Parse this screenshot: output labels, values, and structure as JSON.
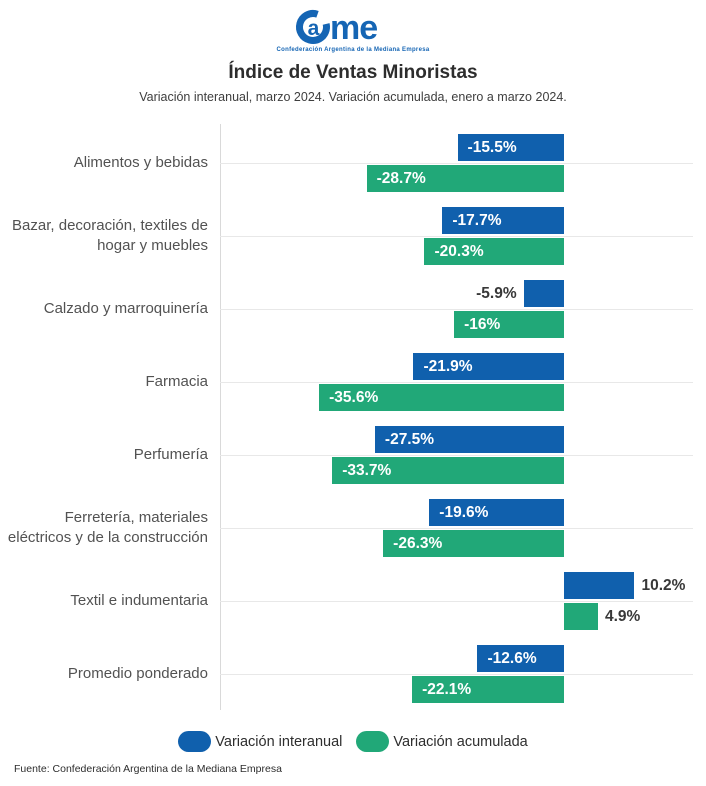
{
  "header": {
    "logo": {
      "letter_a": "a",
      "letters_me": "me",
      "tagline": "Confederación Argentina de la Mediana Empresa"
    },
    "title": "Índice de Ventas Minoristas",
    "subtitle": "Variación interanual, marzo 2024. Variación acumulada, enero a marzo 2024."
  },
  "chart_data": {
    "type": "bar",
    "orientation": "horizontal",
    "title": "Índice de Ventas Minoristas",
    "subtitle": "Variación interanual, marzo 2024. Variación acumulada, enero a marzo 2024.",
    "categories": [
      "Alimentos y bebidas",
      "Bazar, decoración, textiles de\nhogar y muebles",
      "Calzado y marroquinería",
      "Farmacia",
      "Perfumería",
      "Ferretería, materiales\neléctricos y de la construcción",
      "Textil e indumentaria",
      "Promedio ponderado"
    ],
    "series": [
      {
        "name": "Variación interanual",
        "color": "#1060AD",
        "values": [
          -15.5,
          -17.7,
          -5.9,
          -21.9,
          -27.5,
          -19.6,
          10.2,
          -12.6
        ],
        "labels": [
          "-15.5%",
          "-17.7%",
          "-5.9%",
          "-21.9%",
          "-27.5%",
          "-19.6%",
          "10.2%",
          "-12.6%"
        ]
      },
      {
        "name": "Variación acumulada",
        "color": "#21A878",
        "values": [
          -28.7,
          -20.3,
          -16,
          -35.6,
          -33.7,
          -26.3,
          4.9,
          -22.1
        ],
        "labels": [
          "-28.7%",
          "-20.3%",
          "-16%",
          "-35.6%",
          "-33.7%",
          "-26.3%",
          "4.9%",
          "-22.1%"
        ]
      }
    ],
    "xlim": [
      -50,
      18.7
    ],
    "grid": true,
    "legend_position": "bottom",
    "value_label_inside_color": "#ffffff",
    "value_label_outside_color": "#383838"
  },
  "footer": {
    "source": "Fuente: Confederación Argentina de la Mediana Empresa"
  }
}
